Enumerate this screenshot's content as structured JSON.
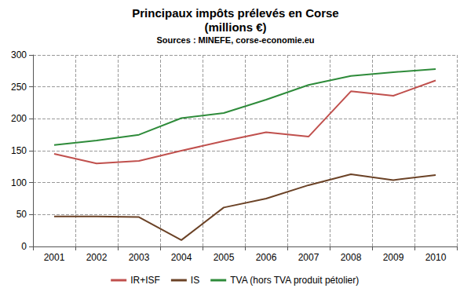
{
  "chart_data": {
    "type": "line",
    "title": "Principaux impôts prélevés en Corse\n(millions €)",
    "subtitle": "Sources : MINEFE, corse-economie.eu",
    "categories": [
      "2001",
      "2002",
      "2003",
      "2004",
      "2005",
      "2006",
      "2007",
      "2008",
      "2009",
      "2010"
    ],
    "series": [
      {
        "name": "IR+ISF",
        "color": "#c0504d",
        "values": [
          145,
          130,
          134,
          150,
          165,
          179,
          172,
          243,
          236,
          260
        ]
      },
      {
        "name": "IS",
        "color": "#6b4226",
        "values": [
          47,
          47,
          46,
          10,
          61,
          75,
          96,
          113,
          104,
          112
        ]
      },
      {
        "name": "TVA (hors TVA produit pétolier)",
        "color": "#2e8b3a",
        "values": [
          159,
          166,
          175,
          201,
          209,
          230,
          253,
          267,
          273,
          278
        ]
      }
    ],
    "ylim": [
      0,
      300
    ],
    "yticks": [
      0,
      50,
      100,
      150,
      200,
      250,
      300
    ],
    "grid": true,
    "legend": "bottom"
  }
}
